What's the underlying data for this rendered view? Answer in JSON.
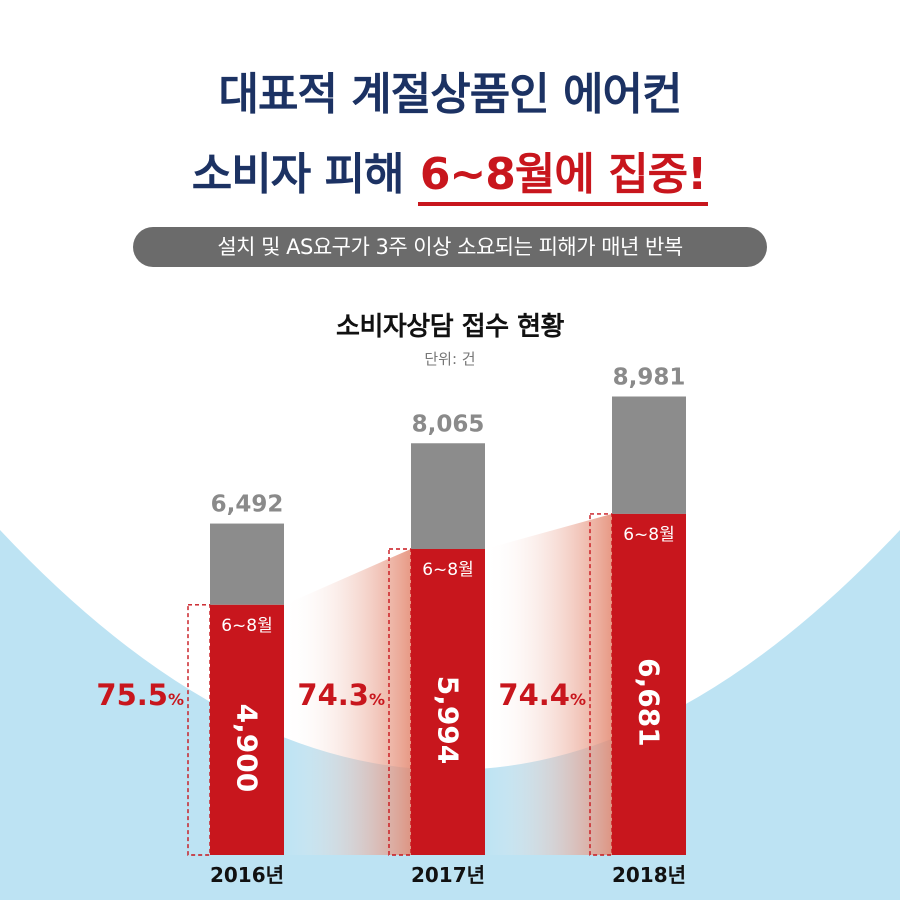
{
  "headline": {
    "line1": "대표적 계절상품인 에어컨",
    "line2_prefix": "소비자 피해 ",
    "line2_highlight": "6~8월에 집중!"
  },
  "subtitle": "설치 및 AS요구가 3주 이상 소요되는 피해가 매년 반복",
  "colors": {
    "navy": "#1c3263",
    "red": "#c8161d",
    "gray": "#8c8c8c",
    "sky": "#bde3f3"
  },
  "chart_data": {
    "type": "bar",
    "title": "소비자상담 접수 현황",
    "unit": "단위: 건",
    "categories": [
      "2016년",
      "2017년",
      "2018년"
    ],
    "series": [
      {
        "name": "6~8월",
        "values": [
          4900,
          5994,
          6681
        ],
        "labels": [
          "4,900",
          "5,994",
          "6,681"
        ]
      }
    ],
    "totals": [
      6492,
      8065,
      8981
    ],
    "total_labels": [
      "6,492",
      "8,065",
      "8,981"
    ],
    "percentages": [
      "75.5",
      "74.3",
      "74.4"
    ],
    "percent_unit": "%",
    "ylim": [
      0,
      9500
    ],
    "stacked": true,
    "grid": false
  }
}
